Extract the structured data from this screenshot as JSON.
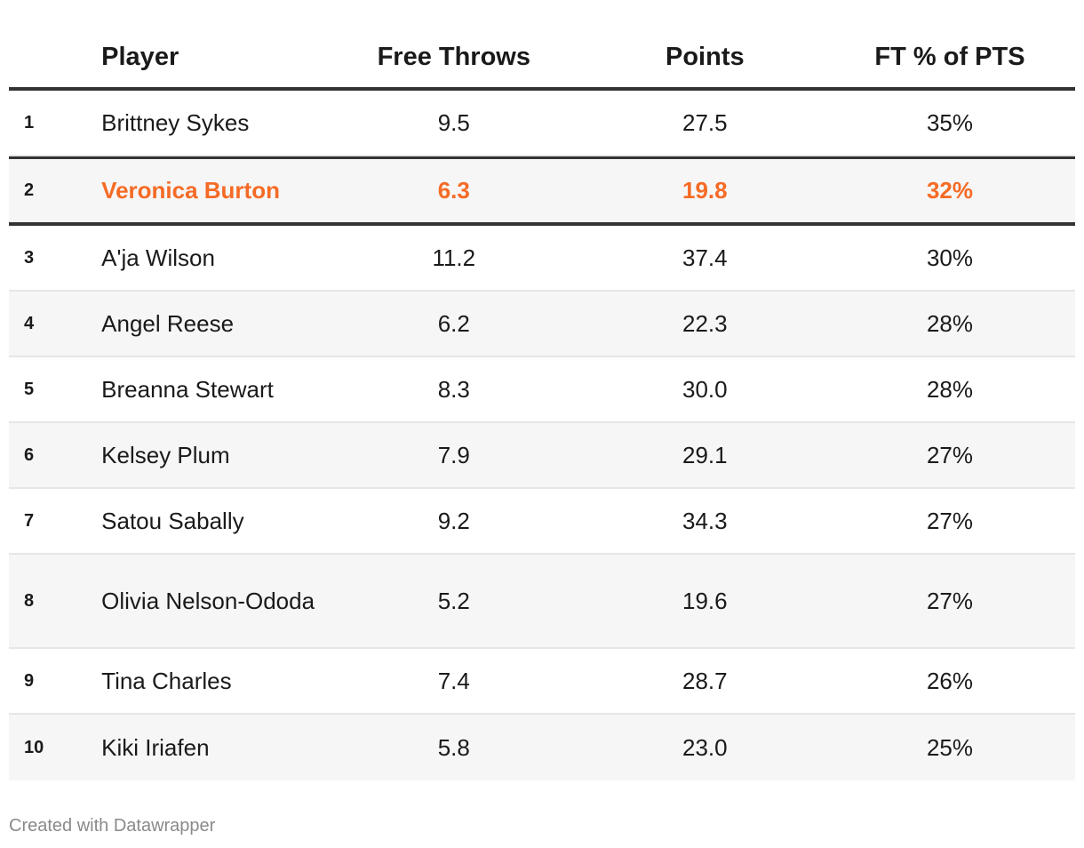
{
  "chart_data": {
    "type": "table",
    "columns": [
      "",
      "Player",
      "Free Throws",
      "Points",
      "FT % of PTS"
    ],
    "rows": [
      {
        "rank": "1",
        "player": "Brittney Sykes",
        "free_throws": "9.5",
        "points": "27.5",
        "ft_pct": "35%"
      },
      {
        "rank": "2",
        "player": "Veronica Burton",
        "free_throws": "6.3",
        "points": "19.8",
        "ft_pct": "32%",
        "highlight": true
      },
      {
        "rank": "3",
        "player": "A'ja Wilson",
        "free_throws": "11.2",
        "points": "37.4",
        "ft_pct": "30%"
      },
      {
        "rank": "4",
        "player": "Angel Reese",
        "free_throws": "6.2",
        "points": "22.3",
        "ft_pct": "28%"
      },
      {
        "rank": "5",
        "player": "Breanna Stewart",
        "free_throws": "8.3",
        "points": "30.0",
        "ft_pct": "28%"
      },
      {
        "rank": "6",
        "player": "Kelsey Plum",
        "free_throws": "7.9",
        "points": "29.1",
        "ft_pct": "27%"
      },
      {
        "rank": "7",
        "player": "Satou Sabally",
        "free_throws": "9.2",
        "points": "34.3",
        "ft_pct": "27%"
      },
      {
        "rank": "8",
        "player": "Olivia Nelson-Ododa",
        "free_throws": "5.2",
        "points": "19.6",
        "ft_pct": "27%"
      },
      {
        "rank": "9",
        "player": "Tina Charles",
        "free_throws": "7.4",
        "points": "28.7",
        "ft_pct": "26%"
      },
      {
        "rank": "10",
        "player": "Kiki Iriafen",
        "free_throws": "5.8",
        "points": "23.0",
        "ft_pct": "25%"
      }
    ]
  },
  "colors": {
    "highlight": "#f56b26",
    "rule": "#333333",
    "row_alt": "#f6f6f6",
    "footer": "#8a8a8a"
  },
  "footer": "Created with Datawrapper"
}
